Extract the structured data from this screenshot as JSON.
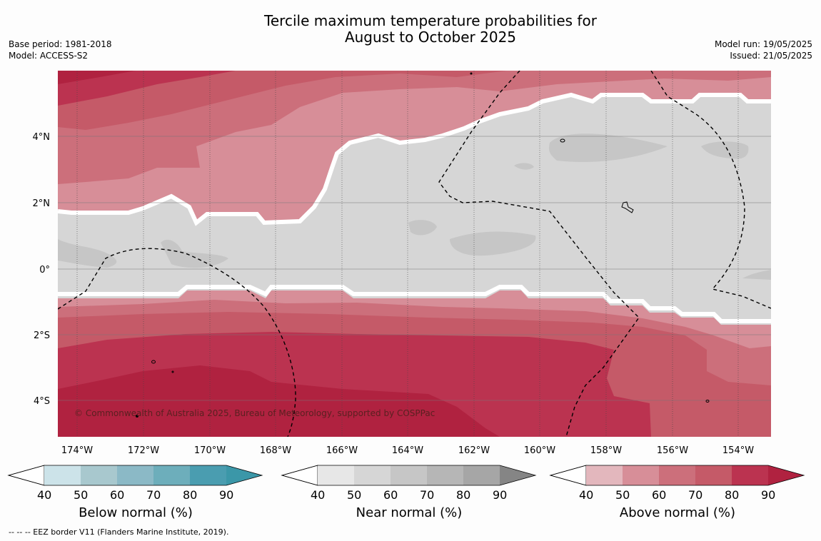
{
  "title_line1": "Tercile maximum temperature probabilities for",
  "title_line2": "August to October 2025",
  "base_period": "Base period: 1981-2018",
  "model": "Model: ACCESS-S2",
  "model_run": "Model run: 19/05/2025",
  "issued": "Issued: 21/05/2025",
  "copyright": "© Commonwealth of Australia 2025, Bureau of Meteorology, supported by COSPPac",
  "lon_labels": [
    "174°W",
    "172°W",
    "170°W",
    "168°W",
    "166°W",
    "164°W",
    "162°W",
    "160°W",
    "158°W",
    "156°W",
    "154°W"
  ],
  "lat_labels": [
    "4°N",
    "2°N",
    "0°",
    "2°S",
    "4°S"
  ],
  "colorbars": [
    {
      "label": "Below normal (%)",
      "ticks": [
        "40",
        "50",
        "60",
        "70",
        "80",
        "90"
      ],
      "colors": [
        "#cce3e9",
        "#a8c8ce",
        "#8bb9c6",
        "#6daebb",
        "#4a9db0",
        "#3b97a8"
      ]
    },
    {
      "label": "Near normal (%)",
      "ticks": [
        "40",
        "50",
        "60",
        "70",
        "80",
        "90"
      ],
      "colors": [
        "#e7e7e7",
        "#d6d6d6",
        "#c6c6c6",
        "#b6b6b6",
        "#a6a6a6",
        "#858585"
      ]
    },
    {
      "label": "Above normal (%)",
      "ticks": [
        "40",
        "50",
        "60",
        "70",
        "80",
        "90"
      ],
      "colors": [
        "#e3b7bd",
        "#d78e98",
        "#cc6f7b",
        "#c55a68",
        "#bb3350",
        "#b02240"
      ]
    }
  ],
  "footnote": "--  --  -- EEZ border V11 (Flanders Marine Institute, 2019)."
}
